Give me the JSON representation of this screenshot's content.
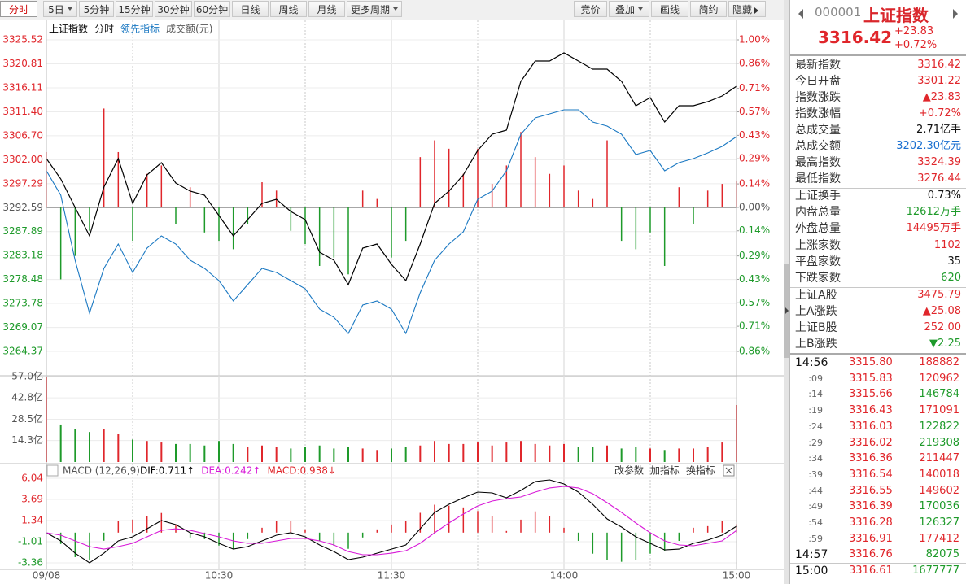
{
  "toolbar": {
    "periods": [
      "分时",
      "5日",
      "5分钟",
      "15分钟",
      "30分钟",
      "60分钟",
      "日线",
      "周线",
      "月线",
      "更多周期"
    ],
    "tools": [
      "竞价",
      "叠加",
      "画线",
      "简约",
      "隐藏"
    ]
  },
  "chart_data": [
    {
      "type": "line",
      "period": "分时",
      "up_color": "#e0262b",
      "down_color": "#1e9a2a",
      "x": [
        0,
        5,
        10,
        15,
        20,
        25,
        30,
        35,
        40,
        45,
        50,
        55,
        60,
        65,
        70,
        75,
        80,
        85,
        90,
        95,
        100,
        105,
        110,
        115,
        120,
        125,
        130,
        135,
        140,
        145,
        150,
        155,
        160,
        165,
        170,
        175,
        180,
        185,
        190,
        195,
        200,
        205,
        210,
        215,
        220,
        225,
        230,
        235,
        240
      ],
      "xlim": [
        0,
        240
      ],
      "xgrid": [
        30,
        90,
        150,
        210
      ],
      "ylim": [
        3264.37,
        3325.52
      ],
      "yticks": [
        3325.52,
        3320.81,
        3316.11,
        {
          "value": 3311.4,
          "label": "3311.40"
        },
        {
          "value": 3306.7,
          "label": "3306.70"
        },
        {
          "value": 3302,
          "label": "3302.00"
        },
        3297.29,
        3292.59,
        3287.89,
        3283.18,
        3278.48,
        3273.78,
        3269.07,
        3264.37
      ],
      "y2lim": [
        -0.86,
        1.0
      ],
      "y2ticks": [
        {
          "value": 1.0,
          "label": "1.00%"
        },
        {
          "value": 0.86,
          "label": "0.86%"
        },
        {
          "value": 0.71,
          "label": "0.71%"
        },
        {
          "value": 0.57,
          "label": "0.57%"
        },
        {
          "value": 0.43,
          "label": "0.43%"
        },
        {
          "value": 0.29,
          "label": "0.29%"
        },
        {
          "value": 0.14,
          "label": "0.14%"
        },
        {
          "value": 0,
          "label": "0.00%"
        },
        {
          "value": -0.14,
          "label": "0.14%"
        },
        {
          "value": -0.29,
          "label": "0.29%"
        },
        {
          "value": -0.43,
          "label": "0.43%"
        },
        {
          "value": -0.57,
          "label": "0.57%"
        },
        {
          "value": -0.71,
          "label": "0.71%"
        },
        {
          "value": -0.86,
          "label": "0.86%"
        }
      ],
      "series": [
        {
          "name": "上证指数",
          "color": "#000000",
          "values": [
            3302.21,
            3298.22,
            3292.63,
            3287.04,
            3296.62,
            3302.21,
            3293.43,
            3299.02,
            3301.41,
            3297.42,
            3295.82,
            3295.02,
            3291.03,
            3287.04,
            3290.24,
            3293.43,
            3294.23,
            3291.83,
            3290.24,
            3283.85,
            3282.25,
            3277.46,
            3284.65,
            3285.45,
            3281.45,
            3278.26,
            3285.45,
            3293.43,
            3295.82,
            3299.02,
            3303.81,
            3307.0,
            3307.8,
            3317.38,
            3321.37,
            3321.37,
            3322.97,
            3321.37,
            3319.77,
            3319.77,
            3317.38,
            3312.59,
            3314.18,
            3309.39,
            3312.59,
            3312.59,
            3313.39,
            3314.5,
            3316.42
          ]
        },
        {
          "name": "领先指标",
          "color": "#1a78c2",
          "values": [
            3299.81,
            3295.02,
            3282.25,
            3271.87,
            3280.66,
            3285.45,
            3279.86,
            3284.65,
            3287.04,
            3285.45,
            3282.25,
            3280.66,
            3278.26,
            3274.27,
            3277.46,
            3280.66,
            3279.86,
            3278.26,
            3276.66,
            3272.67,
            3271.08,
            3267.88,
            3273.47,
            3274.27,
            3272.67,
            3267.88,
            3275.87,
            3282.25,
            3285.45,
            3287.84,
            3294.23,
            3295.82,
            3299.81,
            3307.0,
            3310.19,
            3310.99,
            3311.79,
            3311.79,
            3309.39,
            3308.6,
            3307.0,
            3303.01,
            3303.81,
            3299.81,
            3301.41,
            3302.21,
            3303.33,
            3304.6,
            3306.52
          ]
        },
        {
          "name": "成交额(元)",
          "type": "bar",
          "axis": "y2",
          "values": [
            0.33,
            -0.43,
            -0.29,
            -0.14,
            0.59,
            0.33,
            -0.2,
            0.2,
            0.25,
            -0.1,
            0.12,
            -0.15,
            -0.2,
            -0.25,
            -0.1,
            0.15,
            0.1,
            -0.14,
            -0.22,
            -0.35,
            -0.3,
            -0.4,
            0.1,
            0.05,
            -0.3,
            -0.2,
            0.3,
            0.4,
            0.35,
            0.2,
            0.35,
            0.14,
            0.25,
            0.45,
            0.3,
            0.2,
            0.25,
            0.1,
            0.05,
            0.4,
            -0.2,
            -0.25,
            -0.15,
            -0.35,
            0.12,
            -0.1,
            0.1,
            0.14,
            0.16
          ]
        }
      ]
    },
    {
      "type": "bar",
      "x": [
        0,
        5,
        10,
        15,
        20,
        25,
        30,
        35,
        40,
        45,
        50,
        55,
        60,
        65,
        70,
        75,
        80,
        85,
        90,
        95,
        100,
        105,
        110,
        115,
        120,
        125,
        130,
        135,
        140,
        145,
        150,
        155,
        160,
        165,
        170,
        175,
        180,
        185,
        190,
        195,
        200,
        205,
        210,
        215,
        220,
        225,
        230,
        235,
        240
      ],
      "xlim": [
        0,
        240
      ],
      "ylim": [
        0,
        57
      ],
      "yticks": [
        {
          "value": 57,
          "label": "57.0亿"
        },
        {
          "value": 42.8,
          "label": "42.8亿"
        },
        {
          "value": 28.5,
          "label": "28.5亿"
        },
        {
          "value": 14.3,
          "label": "14.3亿"
        }
      ],
      "values": [
        57,
        25,
        22,
        20,
        22,
        19,
        15,
        14,
        13,
        12,
        12,
        11,
        14,
        12,
        10,
        11,
        10,
        9,
        10,
        11,
        9,
        10,
        9,
        8,
        9,
        10,
        11,
        14,
        12,
        12,
        13,
        11,
        13,
        14,
        12,
        11,
        12,
        10,
        10,
        11,
        9,
        10,
        9,
        8,
        9,
        9,
        10,
        13,
        38
      ]
    },
    {
      "type": "macd",
      "title": "MACD (12,26,9)",
      "tools": [
        "改参数",
        "加指标",
        "换指标"
      ],
      "x": [
        0,
        5,
        10,
        15,
        20,
        25,
        30,
        35,
        40,
        45,
        50,
        55,
        60,
        65,
        70,
        75,
        80,
        85,
        90,
        95,
        100,
        105,
        110,
        115,
        120,
        125,
        130,
        135,
        140,
        145,
        150,
        155,
        160,
        165,
        170,
        175,
        180,
        185,
        190,
        195,
        200,
        205,
        210,
        215,
        220,
        225,
        230,
        235,
        240
      ],
      "xlim": [
        0,
        240
      ],
      "xticks": [
        {
          "value": 0,
          "label": "09/08"
        },
        {
          "value": 60,
          "label": "10:30"
        },
        {
          "value": 120,
          "label": "11:30"
        },
        {
          "value": 180,
          "label": "14:00"
        },
        {
          "value": 240,
          "label": "15:00"
        }
      ],
      "ylim": [
        -3.36,
        6.04
      ],
      "yticks": [
        6.04,
        3.69,
        1.34,
        -1.01,
        -3.36
      ],
      "series": [
        {
          "label": "DIF:0.711↑",
          "color": "#000000",
          "values": [
            -0.02,
            -0.92,
            -2.28,
            -3.36,
            -2.28,
            -0.92,
            -0.47,
            0.43,
            1.34,
            0.89,
            -0.02,
            -0.47,
            -1.19,
            -1.83,
            -1.55,
            -0.92,
            -0.29,
            -0.02,
            -0.47,
            -1.37,
            -2.1,
            -3.0,
            -2.73,
            -2.28,
            -1.83,
            -1.37,
            0.43,
            2.24,
            3.15,
            3.87,
            4.5,
            4.41,
            3.87,
            4.68,
            5.68,
            5.86,
            5.41,
            4.5,
            3.15,
            1.52,
            0.62,
            -0.47,
            -1.19,
            -1.92,
            -1.83,
            -1.19,
            -0.83,
            -0.29,
            0.71
          ]
        },
        {
          "label": "DEA:0.242↑",
          "color": "#d81ad8",
          "values": [
            -0.02,
            -0.29,
            -0.92,
            -1.55,
            -1.83,
            -1.55,
            -1.19,
            -0.47,
            0.25,
            0.43,
            0.25,
            -0.11,
            -0.47,
            -0.92,
            -1.19,
            -1.19,
            -0.92,
            -0.65,
            -0.65,
            -0.92,
            -1.37,
            -2.1,
            -2.46,
            -2.46,
            -2.28,
            -2.01,
            -1.19,
            -0.02,
            1.07,
            2.06,
            2.97,
            3.51,
            3.78,
            3.96,
            4.5,
            4.96,
            5.14,
            4.96,
            4.32,
            3.33,
            2.24,
            1.07,
            -0.02,
            -0.92,
            -1.37,
            -1.46,
            -1.19,
            -0.92,
            0.24
          ]
        },
        {
          "label": "MACD:0.938↓",
          "type": "bar",
          "color": "#e0262b",
          "values": [
            0,
            -1.26,
            -2.72,
            -3.0,
            -0.9,
            1.26,
            1.44,
            1.8,
            2.18,
            0.92,
            -0.54,
            -0.72,
            -1.44,
            -1.82,
            -0.72,
            0.54,
            1.26,
            1.26,
            0.36,
            -0.9,
            -1.46,
            -1.8,
            -0.54,
            0.36,
            0.9,
            1.28,
            2.2,
            3.1,
            3.0,
            2.8,
            2.4,
            1.8,
            0.18,
            1.44,
            2.36,
            1.8,
            0.54,
            -0.92,
            -2.34,
            -3.0,
            -3.24,
            -3.08,
            -2.34,
            -2.0,
            -0.92,
            0.54,
            0.72,
            1.26,
            0.94
          ]
        }
      ]
    }
  ],
  "quote": {
    "code": "000001",
    "name": "上证指数",
    "price": "3316.42",
    "change": "+23.83",
    "change_pct": "+0.72%",
    "groups": [
      [
        [
          "最新指数",
          "3316.42"
        ],
        [
          "今日开盘",
          "3301.22"
        ],
        [
          "指数涨跌",
          "▲23.83"
        ],
        [
          "指数涨幅",
          "+0.72%"
        ],
        [
          "总成交量",
          "2.71亿手"
        ],
        [
          "总成交额",
          "3202.30亿元"
        ],
        [
          "最高指数",
          "3324.39"
        ],
        [
          "最低指数",
          "3276.44"
        ]
      ],
      [
        [
          "上证换手",
          "0.73%"
        ],
        [
          "内盘总量",
          "12612万手"
        ],
        [
          "外盘总量",
          "14495万手"
        ]
      ],
      [
        [
          "上涨家数",
          "1102"
        ],
        [
          "平盘家数",
          "35"
        ],
        [
          "下跌家数",
          "620"
        ]
      ],
      [
        [
          "上证A股",
          "3475.79"
        ],
        [
          "上A涨跌",
          "▲25.08"
        ],
        [
          "上证B股",
          "252.00"
        ],
        [
          "上B涨跌",
          "▼2.25"
        ]
      ]
    ],
    "ticks": [
      [
        "14:56",
        "3315.80",
        "188882"
      ],
      [
        ":09",
        "3315.83",
        "120962"
      ],
      [
        ":14",
        "3315.66",
        "146784"
      ],
      [
        ":19",
        "3316.43",
        "171091"
      ],
      [
        ":24",
        "3316.03",
        "122822"
      ],
      [
        ":29",
        "3316.02",
        "219308"
      ],
      [
        ":34",
        "3316.36",
        "211447"
      ],
      [
        ":39",
        "3316.54",
        "140018"
      ],
      [
        ":44",
        "3316.55",
        "149602"
      ],
      [
        ":49",
        "3316.39",
        "170036"
      ],
      [
        ":54",
        "3316.28",
        "126327"
      ],
      [
        ":59",
        "3316.91",
        "177412"
      ],
      [
        "14:57",
        "3316.76",
        "82075"
      ],
      [
        "15:00",
        "3316.61",
        "1677777"
      ]
    ]
  }
}
